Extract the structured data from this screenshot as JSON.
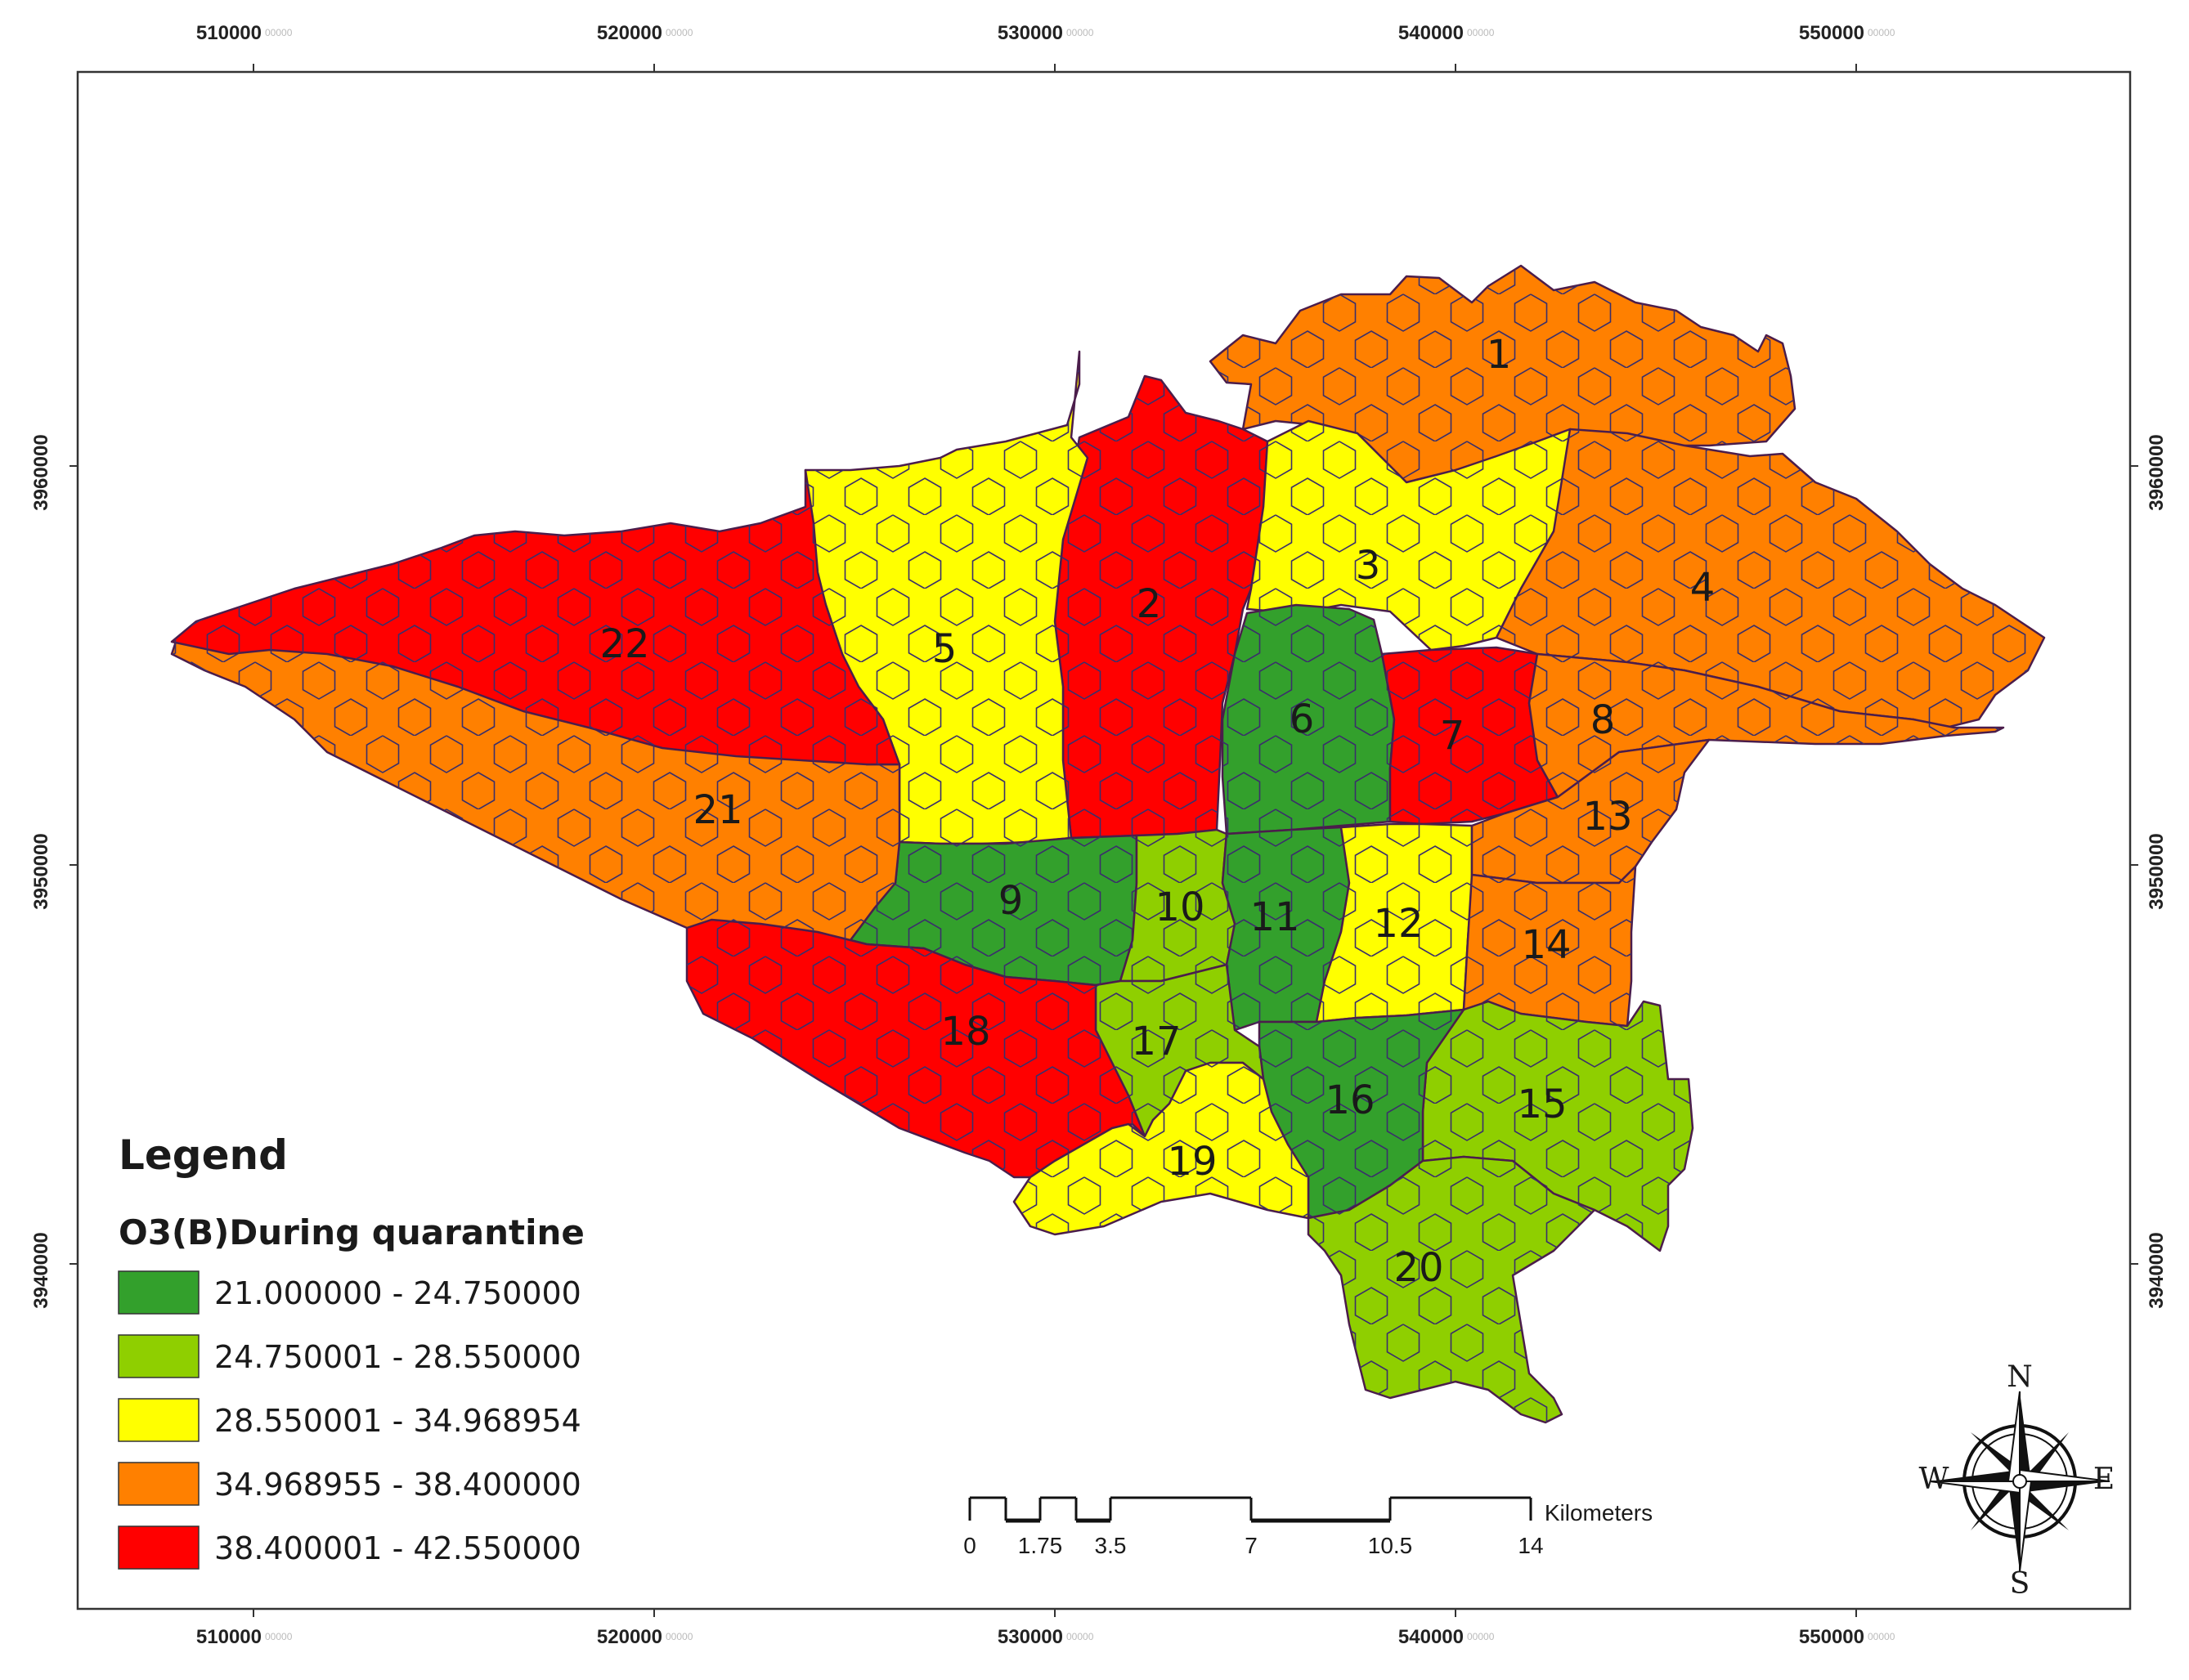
{
  "map": {
    "x_ticks": [
      "510000",
      "520000",
      "530000",
      "540000",
      "550000"
    ],
    "y_ticks": [
      "3960000",
      "3950000",
      "3940000"
    ],
    "tick_suffix": "00000",
    "districts": [
      {
        "id": "1",
        "label": "1",
        "class": 3
      },
      {
        "id": "2",
        "label": "2",
        "class": 4
      },
      {
        "id": "3",
        "label": "3",
        "class": 2
      },
      {
        "id": "4",
        "label": "4",
        "class": 3
      },
      {
        "id": "5",
        "label": "5",
        "class": 2
      },
      {
        "id": "6",
        "label": "6",
        "class": 0
      },
      {
        "id": "7",
        "label": "7",
        "class": 4
      },
      {
        "id": "8",
        "label": "8",
        "class": 3
      },
      {
        "id": "9",
        "label": "9",
        "class": 0
      },
      {
        "id": "10",
        "label": "10",
        "class": 1
      },
      {
        "id": "11",
        "label": "11",
        "class": 0
      },
      {
        "id": "12",
        "label": "12",
        "class": 2
      },
      {
        "id": "13",
        "label": "13",
        "class": 3
      },
      {
        "id": "14",
        "label": "14",
        "class": 3
      },
      {
        "id": "15",
        "label": "15",
        "class": 1
      },
      {
        "id": "16",
        "label": "16",
        "class": 0
      },
      {
        "id": "17",
        "label": "17",
        "class": 1
      },
      {
        "id": "18",
        "label": "18",
        "class": 4
      },
      {
        "id": "19",
        "label": "19",
        "class": 2
      },
      {
        "id": "20",
        "label": "20",
        "class": 1
      },
      {
        "id": "21",
        "label": "21",
        "class": 3
      },
      {
        "id": "22",
        "label": "22",
        "class": 4
      }
    ]
  },
  "legend": {
    "title": "Legend",
    "subtitle": "O3(B)During quarantine",
    "classes": [
      {
        "label": "21.000000 - 24.750000",
        "color": "#33a02c"
      },
      {
        "label": "24.750001 - 28.550000",
        "color": "#8fcf00"
      },
      {
        "label": "28.550001 - 34.968954",
        "color": "#ffff00"
      },
      {
        "label": "34.968955 - 38.400000",
        "color": "#ff8000"
      },
      {
        "label": "38.400001 - 42.550000",
        "color": "#ff0000"
      }
    ]
  },
  "scale_bar": {
    "labels": [
      "0",
      "1.75",
      "3.5",
      "7",
      "10.5",
      "14"
    ],
    "unit": "Kilometers"
  },
  "compass": {
    "n": "N",
    "s": "S",
    "e": "E",
    "w": "W"
  }
}
